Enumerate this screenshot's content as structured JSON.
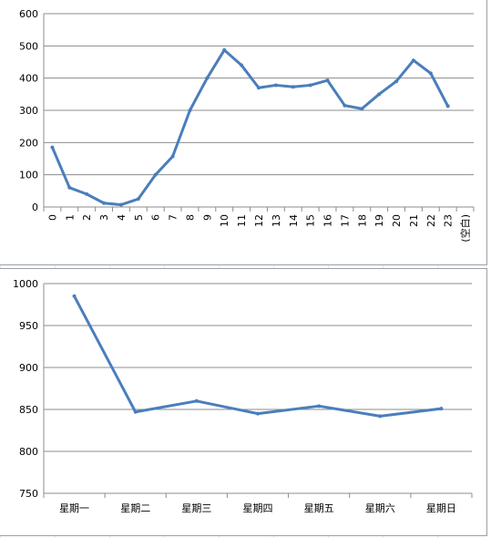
{
  "chart_data": [
    {
      "type": "line",
      "categories": [
        "0",
        "1",
        "2",
        "3",
        "4",
        "5",
        "6",
        "7",
        "8",
        "9",
        "10",
        "11",
        "12",
        "13",
        "14",
        "15",
        "16",
        "17",
        "18",
        "19",
        "20",
        "21",
        "22",
        "23",
        "(空白)"
      ],
      "values": [
        185,
        60,
        40,
        12,
        7,
        25,
        100,
        157,
        300,
        400,
        487,
        440,
        370,
        378,
        373,
        378,
        393,
        315,
        305,
        350,
        390,
        455,
        415,
        313,
        null
      ],
      "ylim": [
        0,
        600
      ],
      "yticks": [
        0,
        100,
        200,
        300,
        400,
        500,
        600
      ],
      "grid": true,
      "series_color": "#4a7ebb",
      "title": "",
      "xlabel": "",
      "ylabel": ""
    },
    {
      "type": "line",
      "categories": [
        "星期一",
        "星期二",
        "星期三",
        "星期四",
        "星期五",
        "星期六",
        "星期日"
      ],
      "values": [
        985,
        847,
        860,
        845,
        854,
        842,
        851
      ],
      "ylim": [
        750,
        1000
      ],
      "yticks": [
        750,
        800,
        850,
        900,
        950,
        1000
      ],
      "grid": true,
      "series_color": "#4a7ebb",
      "title": "",
      "xlabel": "",
      "ylabel": ""
    }
  ]
}
